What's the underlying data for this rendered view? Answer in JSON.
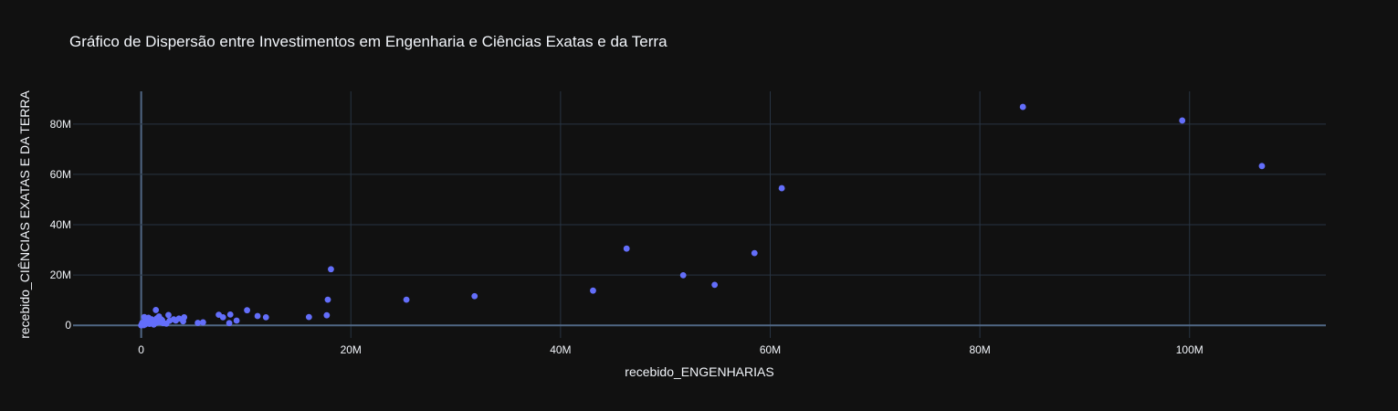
{
  "colors": {
    "background": "#111111",
    "grid": "#283442",
    "zeroline": "#506784",
    "marker": "#636efa",
    "text": "#f2f5fa"
  },
  "chart_data": {
    "type": "scatter",
    "title": "Gráfico de Dispersão entre Investimentos em Engenharia e Ciências Exatas e da Terra",
    "xlabel": "recebido_ENGENHARIAS",
    "ylabel": "recebido_CIÊNCIAS EXATAS E DA TERRA",
    "xlim": [
      -6500000,
      113000000
    ],
    "ylim": [
      -5000000,
      93000000
    ],
    "x_ticks": [
      {
        "value": 0,
        "label": "0"
      },
      {
        "value": 20000000,
        "label": "20M"
      },
      {
        "value": 40000000,
        "label": "40M"
      },
      {
        "value": 60000000,
        "label": "60M"
      },
      {
        "value": 80000000,
        "label": "80M"
      },
      {
        "value": 100000000,
        "label": "100M"
      }
    ],
    "y_ticks": [
      {
        "value": 0,
        "label": "0"
      },
      {
        "value": 20000000,
        "label": "20M"
      },
      {
        "value": 40000000,
        "label": "40M"
      },
      {
        "value": 60000000,
        "label": "60M"
      },
      {
        "value": 80000000,
        "label": "80M"
      }
    ],
    "grid": true,
    "legend": "none",
    "points": [
      [
        84100000,
        86800000
      ],
      [
        99300000,
        81400000
      ],
      [
        106900000,
        63300000
      ],
      [
        61100000,
        54500000
      ],
      [
        46300000,
        30500000
      ],
      [
        58500000,
        28700000
      ],
      [
        18100000,
        22300000
      ],
      [
        51700000,
        19900000
      ],
      [
        54700000,
        16100000
      ],
      [
        43100000,
        13800000
      ],
      [
        31800000,
        11600000
      ],
      [
        25300000,
        10200000
      ],
      [
        17800000,
        10200000
      ],
      [
        10100000,
        6000000
      ],
      [
        17700000,
        4000000
      ],
      [
        16000000,
        3300000
      ],
      [
        11100000,
        3700000
      ],
      [
        11900000,
        3200000
      ],
      [
        8500000,
        4300000
      ],
      [
        7400000,
        4200000
      ],
      [
        7800000,
        3200000
      ],
      [
        9100000,
        1900000
      ],
      [
        8400000,
        900000
      ],
      [
        5900000,
        1200000
      ],
      [
        5400000,
        1000000
      ],
      [
        4100000,
        3200000
      ],
      [
        4000000,
        1600000
      ],
      [
        3600000,
        2700000
      ],
      [
        3100000,
        2400000
      ],
      [
        2700000,
        1800000
      ],
      [
        2600000,
        4100000
      ],
      [
        2400000,
        700000
      ],
      [
        2100000,
        900000
      ],
      [
        1900000,
        2400000
      ],
      [
        1700000,
        3500000
      ],
      [
        1500000,
        2800000
      ],
      [
        1500000,
        1200000
      ],
      [
        1400000,
        6100000
      ],
      [
        1200000,
        300000
      ],
      [
        1200000,
        1700000
      ],
      [
        1000000,
        2400000
      ],
      [
        900000,
        1600000
      ],
      [
        800000,
        600000
      ],
      [
        700000,
        3000000
      ],
      [
        600000,
        1100000
      ],
      [
        500000,
        2200000
      ],
      [
        400000,
        400000
      ],
      [
        300000,
        3300000
      ],
      [
        300000,
        1500000
      ],
      [
        200000,
        700000
      ],
      [
        150000,
        200000
      ],
      [
        100000,
        1000000
      ],
      [
        50000,
        400000
      ],
      [
        0,
        0
      ],
      [
        250000,
        100000
      ],
      [
        1100000,
        800000
      ],
      [
        1800000,
        1300000
      ],
      [
        3300000,
        1900000
      ],
      [
        600000,
        2100000
      ],
      [
        2000000,
        2000000
      ]
    ]
  }
}
